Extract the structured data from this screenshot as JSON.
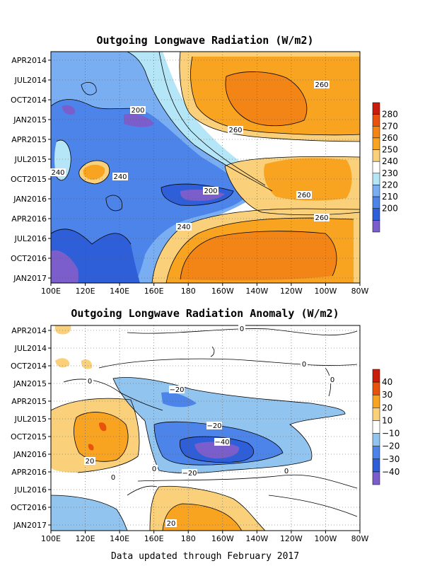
{
  "footer": "Data updated through February 2017",
  "chart_data": [
    {
      "type": "heatmap",
      "title": "Outgoing Longwave Radiation (W/m2)",
      "x_ticks": [
        "100E",
        "120E",
        "140E",
        "160E",
        "180",
        "160W",
        "140W",
        "120W",
        "100W",
        "80W"
      ],
      "y_ticks": [
        "APR2014",
        "JUL2014",
        "OCT2014",
        "JAN2015",
        "APR2015",
        "JUL2015",
        "OCT2015",
        "JAN2016",
        "APR2016",
        "JUL2016",
        "OCT2016",
        "JAN2017"
      ],
      "colorbar_ticks": [
        "280",
        "270",
        "260",
        "250",
        "240",
        "230",
        "220",
        "210",
        "200"
      ],
      "colors": [
        "#7b5ecb",
        "#2e5fd9",
        "#4c84ea",
        "#7aaef2",
        "#b4e6f7",
        "#ffffff",
        "#fad07a",
        "#f8a420",
        "#f28516",
        "#e8520c",
        "#c91c0a"
      ],
      "contour_labels": [
        "260",
        "200",
        "260",
        "240",
        "240",
        "200",
        "260",
        "260",
        "240"
      ],
      "grid": "dotted"
    },
    {
      "type": "heatmap",
      "title": "Outgoing Longwave Radiation Anomaly (W/m2)",
      "x_ticks": [
        "100E",
        "120E",
        "140E",
        "160E",
        "180",
        "160W",
        "140W",
        "120W",
        "100W",
        "80W"
      ],
      "y_ticks": [
        "APR2014",
        "JUL2014",
        "OCT2014",
        "JAN2015",
        "APR2015",
        "JUL2015",
        "OCT2015",
        "JAN2016",
        "APR2016",
        "JUL2016",
        "OCT2016",
        "JAN2017"
      ],
      "colorbar_ticks": [
        "40",
        "30",
        "20",
        "10",
        "−10",
        "−20",
        "−30",
        "−40"
      ],
      "colors": [
        "#7b5ecb",
        "#2e5fd9",
        "#4c84ea",
        "#92c4f0",
        "#ffffff",
        "#fad07a",
        "#f8a420",
        "#e8520c",
        "#c91c0a"
      ],
      "contour_labels": [
        "0",
        "0",
        "0",
        "0",
        "−20",
        "−20",
        "−40",
        "20",
        "0",
        "0",
        "−20",
        "0",
        "20"
      ],
      "grid": "dotted"
    }
  ]
}
